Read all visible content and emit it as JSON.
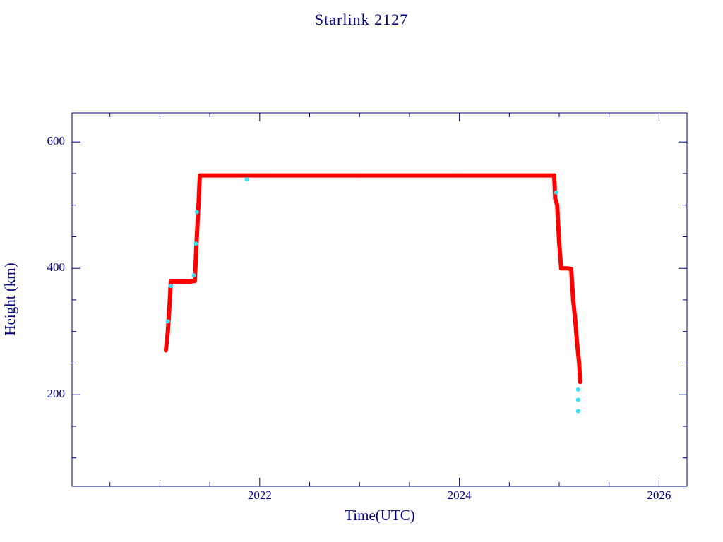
{
  "chart_data": {
    "type": "line",
    "title": "Starlink 2127",
    "x_label": "Time(UTC)",
    "y_label": "Height (km)",
    "xlim": [
      2020.12,
      2026.28
    ],
    "ylim": [
      55,
      646
    ],
    "xticks": [
      2022,
      2024,
      2026
    ],
    "yticks": [
      200,
      400,
      600
    ],
    "xminorticks": [
      2020.5,
      2021,
      2021.5,
      2022.5,
      2023,
      2023.5,
      2024.5,
      2025,
      2025.5
    ],
    "yminorticks": [
      100,
      150,
      250,
      300,
      350,
      450,
      500,
      550
    ],
    "series": [
      {
        "color": "#ff0000",
        "mode": "line",
        "x": [
          2021.06,
          2021.08,
          2021.1,
          2021.11,
          2021.2,
          2021.3,
          2021.35,
          2021.37,
          2021.39,
          2021.4,
          2022,
          2023,
          2024,
          2024.95,
          2024.96,
          2024.98,
          2025.0,
          2025.02,
          2025.08,
          2025.12,
          2025.14,
          2025.16,
          2025.18,
          2025.2,
          2025.21
        ],
        "values": [
          270,
          300,
          350,
          379,
          379,
          379,
          380,
          450,
          510,
          547,
          547,
          547,
          547,
          547,
          510,
          500,
          440,
          400,
          400,
          399,
          350,
          320,
          280,
          250,
          220
        ]
      },
      {
        "color": "#33e0f0",
        "mode": "points",
        "x": [
          2021.08,
          2021.11,
          2021.34,
          2021.36,
          2021.37,
          2021.87,
          2024.97,
          2025.19,
          2025.19,
          2025.19
        ],
        "values": [
          316,
          372,
          389,
          439,
          489,
          541,
          520,
          208,
          192,
          174
        ]
      }
    ]
  }
}
